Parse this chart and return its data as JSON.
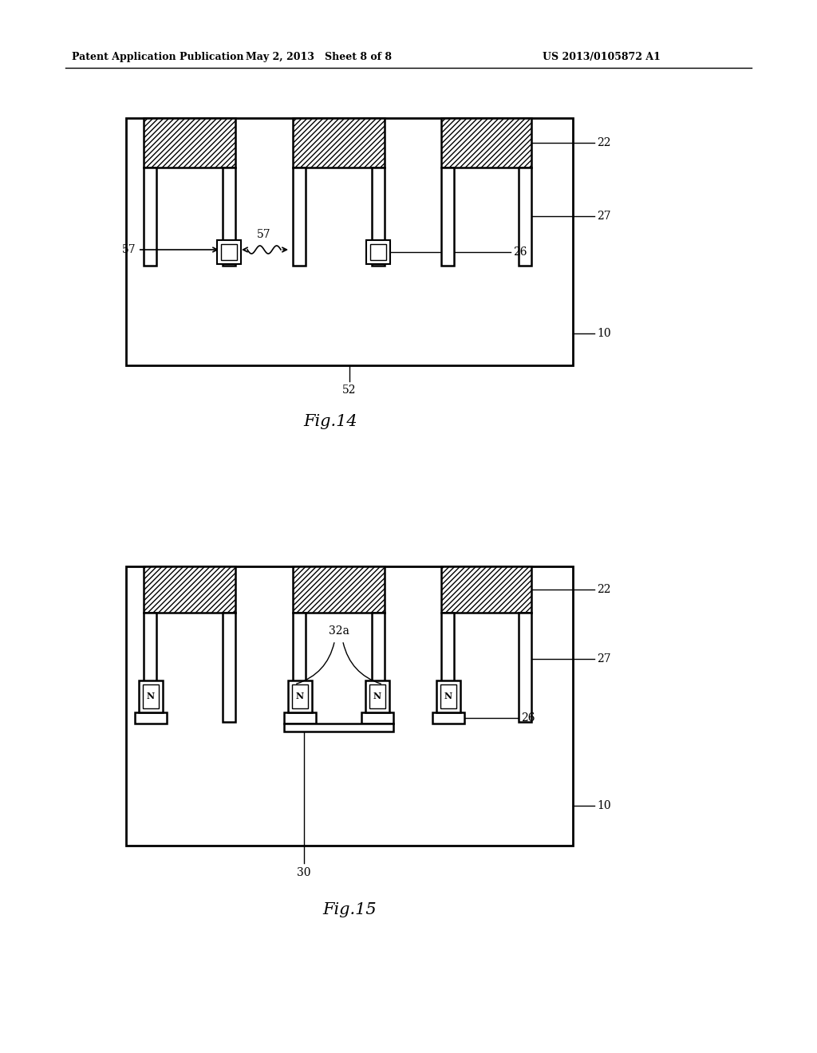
{
  "header_left": "Patent Application Publication",
  "header_mid": "May 2, 2013   Sheet 8 of 8",
  "header_right": "US 2013/0105872 A1",
  "fig14_label": "Fig.14",
  "fig15_label": "Fig.15",
  "bg_color": "#ffffff",
  "line_color": "#000000"
}
